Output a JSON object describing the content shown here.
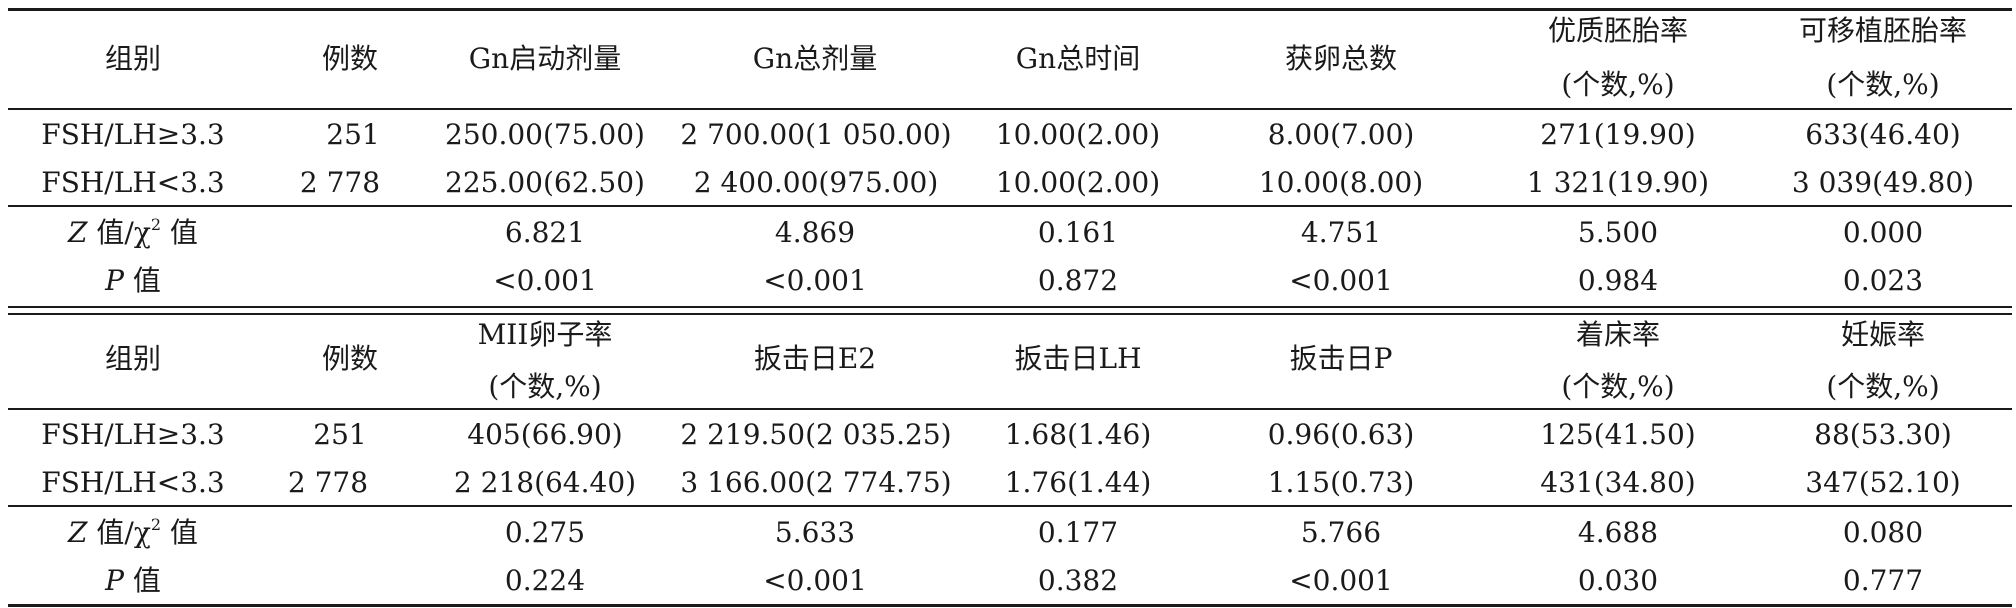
{
  "part1": {
    "header": [
      "组别",
      "例数",
      "Gn启动剂量",
      "Gn总剂量",
      "Gn总时间",
      "获卵总数",
      "优质胚胎率",
      "可移植胚胎率"
    ],
    "header_sub": [
      "(个数,%)",
      "(个数,%)"
    ],
    "rows": [
      [
        "FSH/LH≥3.3",
        "251",
        "250.00(75.00)",
        "2 700.00(1 050.00)",
        "10.00(2.00)",
        "8.00(7.00)",
        "271(19.90)",
        "633(46.40)"
      ],
      [
        "FSH/LH<3.3",
        "2 778",
        "225.00(62.50)",
        "2 400.00(975.00)",
        "10.00(2.00)",
        "10.00(8.00)",
        "1 321(19.90)",
        "3 039(49.80)"
      ]
    ],
    "stats": {
      "z_label_var": "Z",
      "z_label_rest": "值/χ",
      "z_label_sup": "2",
      "z_label_tail": "值",
      "z_values": [
        "6.821",
        "4.869",
        "0.161",
        "4.751",
        "5.500",
        "0.000"
      ],
      "p_label_var": "P",
      "p_label_rest": "值",
      "p_values": [
        "<0.001",
        "<0.001",
        "0.872",
        "<0.001",
        "0.984",
        "0.023"
      ]
    }
  },
  "part2": {
    "header": [
      "组别",
      "例数",
      "MII卵子率",
      "扳击日E2",
      "扳击日LH",
      "扳击日P",
      "着床率",
      "妊娠率"
    ],
    "header_sub": [
      "(个数,%)",
      "(个数,%)",
      "(个数,%)"
    ],
    "rows": [
      [
        "FSH/LH≥3.3",
        "251",
        "405(66.90)",
        "2 219.50(2 035.25)",
        "1.68(1.46)",
        "0.96(0.63)",
        "125(41.50)",
        "88(53.30)"
      ],
      [
        "FSH/LH<3.3",
        "2 778",
        "2 218(64.40)",
        "3 166.00(2 774.75)",
        "1.76(1.44)",
        "1.15(0.73)",
        "431(34.80)",
        "347(52.10)"
      ]
    ],
    "stats": {
      "z_values": [
        "0.275",
        "5.633",
        "0.177",
        "5.766",
        "4.688",
        "0.080"
      ],
      "p_values": [
        "0.224",
        "<0.001",
        "0.382",
        "<0.001",
        "0.030",
        "0.777"
      ]
    }
  }
}
